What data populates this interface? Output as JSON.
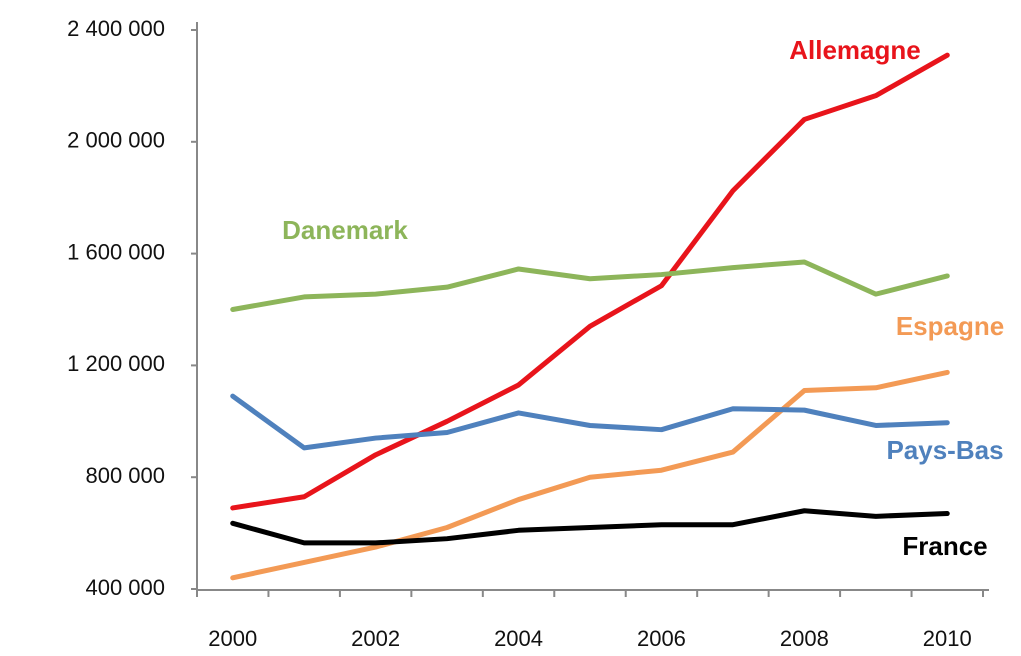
{
  "chart_data": {
    "type": "line",
    "categories": [
      "2000",
      null,
      "2002",
      null,
      "2004",
      null,
      "2006",
      null,
      "2008",
      null,
      "2010"
    ],
    "ylim": [
      400000,
      2400000
    ],
    "yticks": [
      {
        "value": 400000,
        "label": "400 000"
      },
      {
        "value": 800000,
        "label": "800 000"
      },
      {
        "value": 1200000,
        "label": "1 200 000"
      },
      {
        "value": 1600000,
        "label": "1 600 000"
      },
      {
        "value": 2000000,
        "label": "2 000 000"
      },
      {
        "value": 2400000,
        "label": "2 400 000"
      }
    ],
    "series": [
      {
        "name": "Allemagne",
        "color": "#e8141b",
        "values": [
          690000,
          730000,
          880000,
          1000000,
          1130000,
          1340000,
          1485000,
          1825000,
          2080000,
          2165000,
          2310000
        ]
      },
      {
        "name": "Danemark",
        "color": "#8db55a",
        "values": [
          1400000,
          1445000,
          1455000,
          1480000,
          1545000,
          1510000,
          1525000,
          1550000,
          1570000,
          1455000,
          1520000
        ]
      },
      {
        "name": "Espagne",
        "color": "#f39a55",
        "values": [
          440000,
          495000,
          550000,
          620000,
          720000,
          800000,
          825000,
          890000,
          1110000,
          1120000,
          1175000
        ]
      },
      {
        "name": "Pays-Bas",
        "color": "#4f81bd",
        "values": [
          1090000,
          905000,
          940000,
          960000,
          1030000,
          985000,
          970000,
          1045000,
          1040000,
          985000,
          995000
        ]
      },
      {
        "name": "France",
        "color": "#000000",
        "values": [
          635000,
          565000,
          565000,
          580000,
          610000,
          620000,
          630000,
          630000,
          680000,
          660000,
          670000
        ]
      }
    ]
  }
}
